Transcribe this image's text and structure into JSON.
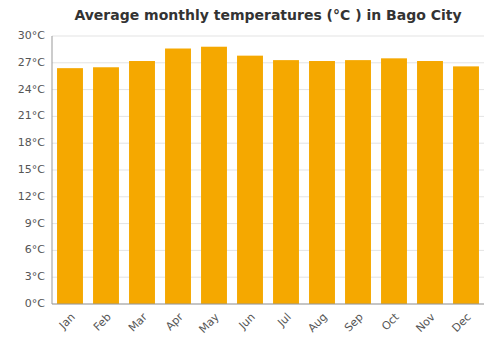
{
  "chart_data": {
    "type": "bar",
    "title": "Average monthly temperatures (°C ) in Bago City",
    "categories": [
      "Jan",
      "Feb",
      "Mar",
      "Apr",
      "May",
      "Jun",
      "Jul",
      "Aug",
      "Sep",
      "Oct",
      "Nov",
      "Dec"
    ],
    "values": [
      26.4,
      26.5,
      27.2,
      28.6,
      28.8,
      27.8,
      27.3,
      27.2,
      27.3,
      27.5,
      27.2,
      26.6
    ],
    "color": "#F5A800",
    "ylim": [
      0,
      30
    ],
    "yticks": [
      {
        "value": 0,
        "label": "0°C"
      },
      {
        "value": 3,
        "label": "3°C"
      },
      {
        "value": 6,
        "label": "6°C"
      },
      {
        "value": 9,
        "label": "9°C"
      },
      {
        "value": 12,
        "label": "12°C"
      },
      {
        "value": 15,
        "label": "15°C"
      },
      {
        "value": 18,
        "label": "18°C"
      },
      {
        "value": 21,
        "label": "21°C"
      },
      {
        "value": 24,
        "label": "24°C"
      },
      {
        "value": 27,
        "label": "27°C"
      },
      {
        "value": 30,
        "label": "30°C"
      }
    ],
    "grid": true
  }
}
